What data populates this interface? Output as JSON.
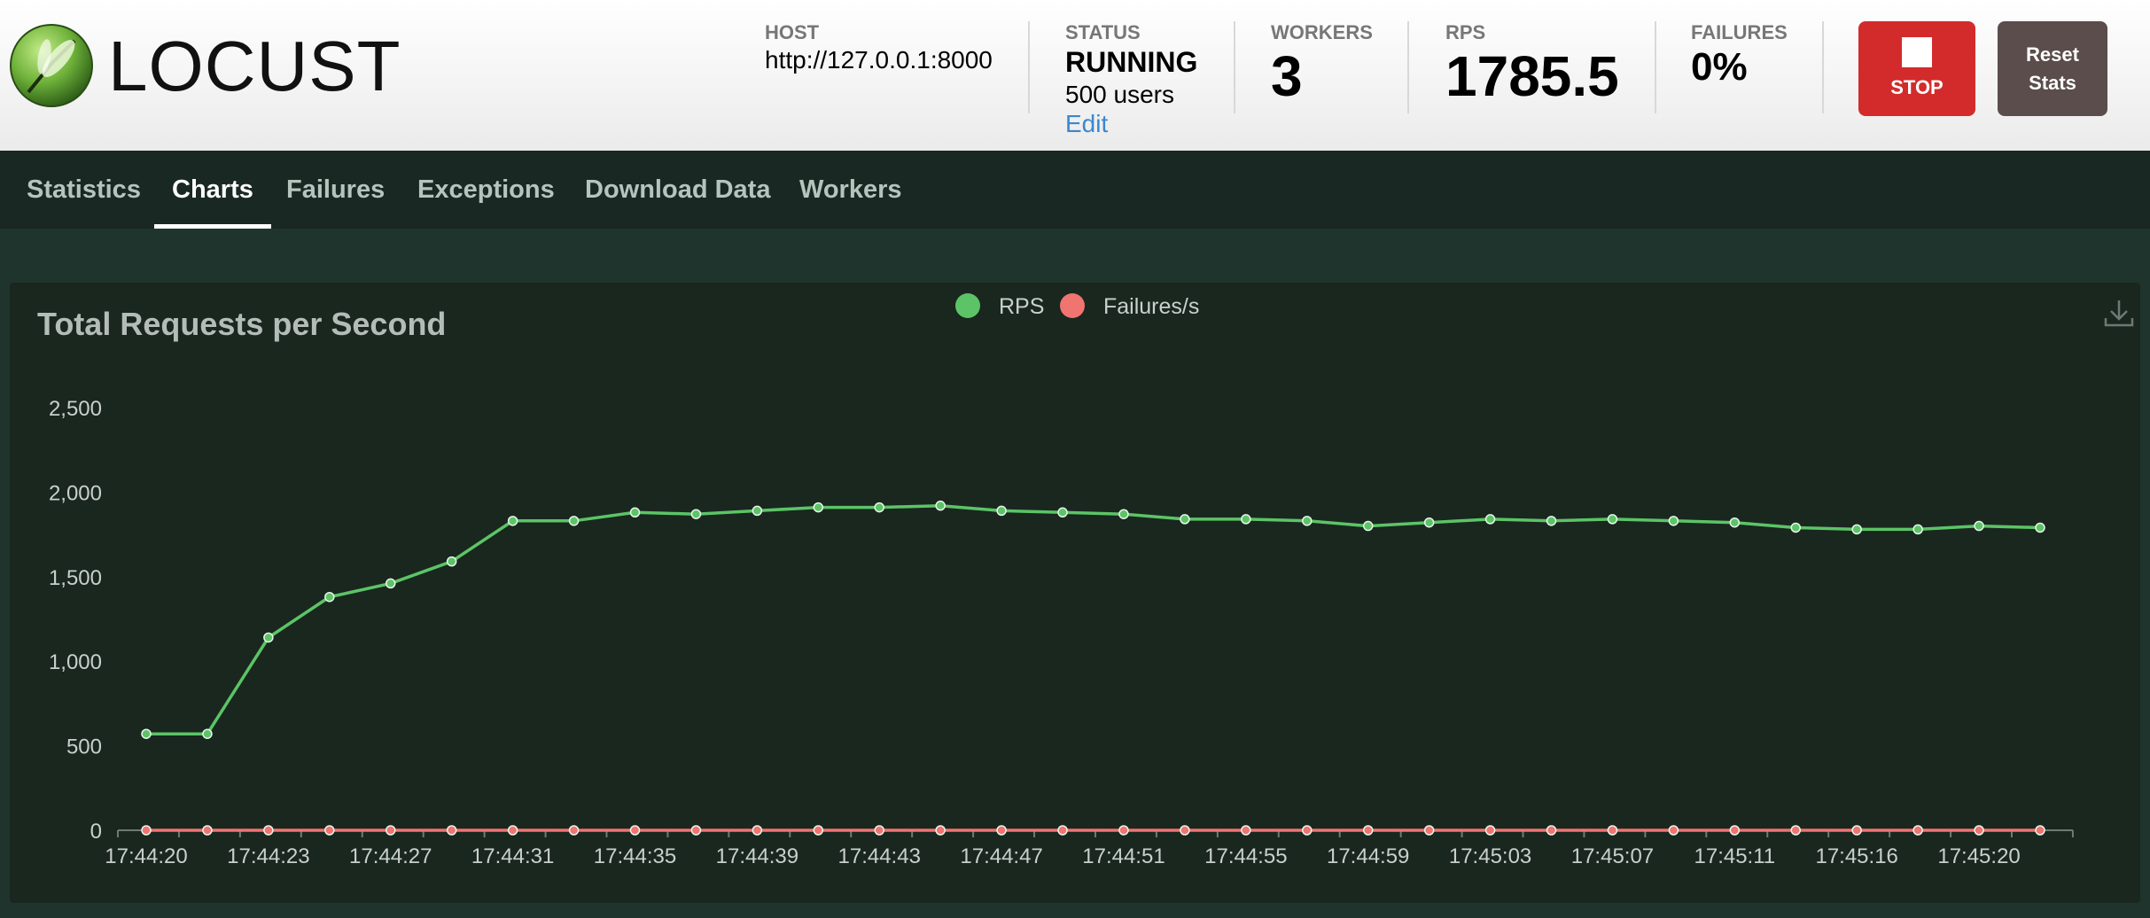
{
  "brand": {
    "name": "LOCUST"
  },
  "stats": {
    "host": {
      "label": "HOST",
      "value": "http://127.0.0.1:8000"
    },
    "status": {
      "label": "STATUS",
      "value": "RUNNING",
      "users": "500 users",
      "edit": "Edit"
    },
    "workers": {
      "label": "WORKERS",
      "value": "3"
    },
    "rps": {
      "label": "RPS",
      "value": "1785.5"
    },
    "failures": {
      "label": "FAILURES",
      "value": "0%"
    }
  },
  "buttons": {
    "stop": "STOP",
    "reset_line1": "Reset",
    "reset_line2": "Stats"
  },
  "tabs": [
    {
      "label": "Statistics"
    },
    {
      "label": "Charts",
      "active": true
    },
    {
      "label": "Failures"
    },
    {
      "label": "Exceptions"
    },
    {
      "label": "Download Data"
    },
    {
      "label": "Workers"
    }
  ],
  "colors": {
    "rps": "#5cc466",
    "failures": "#f07470",
    "stop": "#d32b2b"
  },
  "icons": {
    "download": "download-icon"
  },
  "chart_data": {
    "type": "line",
    "title": "Total Requests per Second",
    "x_tick_labels": [
      "17:44:20",
      "17:44:23",
      "17:44:27",
      "17:44:31",
      "17:44:35",
      "17:44:39",
      "17:44:43",
      "17:44:47",
      "17:44:51",
      "17:44:55",
      "17:44:59",
      "17:45:03",
      "17:45:07",
      "17:45:11",
      "17:45:16",
      "17:45:20"
    ],
    "ylim": [
      0,
      2500
    ],
    "y_ticks": [
      0,
      500,
      1000,
      1500,
      2000,
      2500
    ],
    "y_tick_labels": [
      "0",
      "500",
      "1,000",
      "1,500",
      "2,000",
      "2,500"
    ],
    "legend": {
      "placement": "top-center"
    },
    "grid": false,
    "series": [
      {
        "name": "RPS",
        "values": [
          570,
          570,
          1140,
          1380,
          1460,
          1590,
          1830,
          1830,
          1880,
          1870,
          1890,
          1910,
          1910,
          1920,
          1890,
          1880,
          1870,
          1840,
          1840,
          1830,
          1800,
          1820,
          1840,
          1830,
          1840,
          1830,
          1820,
          1790,
          1780,
          1780,
          1800,
          1790
        ]
      },
      {
        "name": "Failures/s",
        "values": [
          0,
          0,
          0,
          0,
          0,
          0,
          0,
          0,
          0,
          0,
          0,
          0,
          0,
          0,
          0,
          0,
          0,
          0,
          0,
          0,
          0,
          0,
          0,
          0,
          0,
          0,
          0,
          0,
          0,
          0,
          0,
          0
        ]
      }
    ]
  }
}
